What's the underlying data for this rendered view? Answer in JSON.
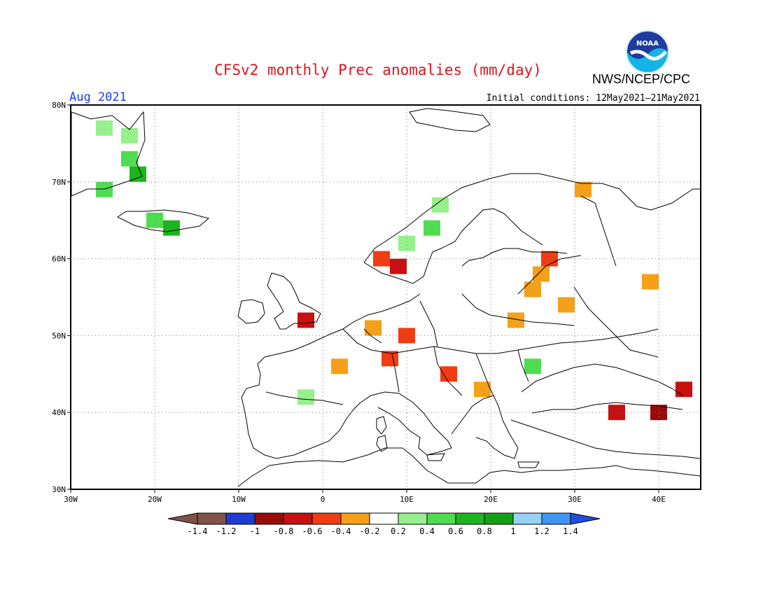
{
  "title": "CFSv2 monthly Prec anomalies (mm/day)",
  "agency": "NWS/NCEP/CPC",
  "logo_text": "NOAA",
  "month_label": "Aug 2021",
  "initial_conditions": "Initial conditions: 12May2021–21May2021",
  "colors": {
    "title": "#e0141e",
    "month": "#1c3cf0"
  },
  "lat_labels": [
    "80N",
    "70N",
    "60N",
    "50N",
    "40N",
    "30N"
  ],
  "lon_labels": [
    "30W",
    "20W",
    "10W",
    "0",
    "10E",
    "20E",
    "30E",
    "40E"
  ],
  "legend": {
    "boundaries": [
      "-1.4",
      "-1.2",
      "-1",
      "-0.8",
      "-0.6",
      "-0.4",
      "-0.2",
      "0.2",
      "0.4",
      "0.6",
      "0.8",
      "1",
      "1.2",
      "1.4"
    ],
    "colors": [
      "#7f5346",
      "#7f5a4e",
      "#1f3cd2",
      "#9b0a0a",
      "#c7100f",
      "#f03c10",
      "#f5a019",
      "#ffffff",
      "#96f08c",
      "#50dc50",
      "#1eb41e",
      "#14a014",
      "#96d2fa",
      "#3c96f5",
      "#1f50dc"
    ]
  },
  "map_data": {
    "projection": "equirectangular",
    "lon_range": [
      -30,
      45
    ],
    "lat_range": [
      30,
      80
    ],
    "grid": true,
    "anomaly_cells": [
      {
        "lon": -27,
        "lat": 77,
        "level": "0.2"
      },
      {
        "lon": -24,
        "lat": 76,
        "level": "0.2"
      },
      {
        "lon": -24,
        "lat": 73,
        "level": "0.4"
      },
      {
        "lon": -23,
        "lat": 71,
        "level": "0.6"
      },
      {
        "lon": -27,
        "lat": 69,
        "level": "0.4"
      },
      {
        "lon": -21,
        "lat": 65,
        "level": "0.4"
      },
      {
        "lon": -19,
        "lat": 64,
        "level": "0.6"
      },
      {
        "lon": 13,
        "lat": 67,
        "level": "0.2"
      },
      {
        "lon": 12,
        "lat": 64,
        "level": "0.4"
      },
      {
        "lon": 9,
        "lat": 62,
        "level": "0.2"
      },
      {
        "lon": 6,
        "lat": 60,
        "level": "-0.6"
      },
      {
        "lon": 8,
        "lat": 59,
        "level": "-0.8"
      },
      {
        "lon": 26,
        "lat": 60,
        "level": "-0.6"
      },
      {
        "lon": 25,
        "lat": 58,
        "level": "-0.4"
      },
      {
        "lon": 24,
        "lat": 56,
        "level": "-0.4"
      },
      {
        "lon": 28,
        "lat": 54,
        "level": "-0.4"
      },
      {
        "lon": 22,
        "lat": 52,
        "level": "-0.4"
      },
      {
        "lon": 9,
        "lat": 50,
        "level": "-0.6"
      },
      {
        "lon": 5,
        "lat": 51,
        "level": "-0.4"
      },
      {
        "lon": -3,
        "lat": 52,
        "level": "-0.8"
      },
      {
        "lon": 7,
        "lat": 47,
        "level": "-0.6"
      },
      {
        "lon": 1,
        "lat": 46,
        "level": "-0.4"
      },
      {
        "lon": 14,
        "lat": 45,
        "level": "-0.6"
      },
      {
        "lon": 18,
        "lat": 43,
        "level": "-0.4"
      },
      {
        "lon": 24,
        "lat": 46,
        "level": "0.4"
      },
      {
        "lon": 34,
        "lat": 40,
        "level": "-0.8"
      },
      {
        "lon": 39,
        "lat": 40,
        "level": "-1"
      },
      {
        "lon": 42,
        "lat": 43,
        "level": "-0.8"
      },
      {
        "lon": 38,
        "lat": 57,
        "level": "-0.4"
      },
      {
        "lon": -3,
        "lat": 42,
        "level": "0.2"
      },
      {
        "lon": 30,
        "lat": 69,
        "level": "-0.4"
      }
    ]
  }
}
